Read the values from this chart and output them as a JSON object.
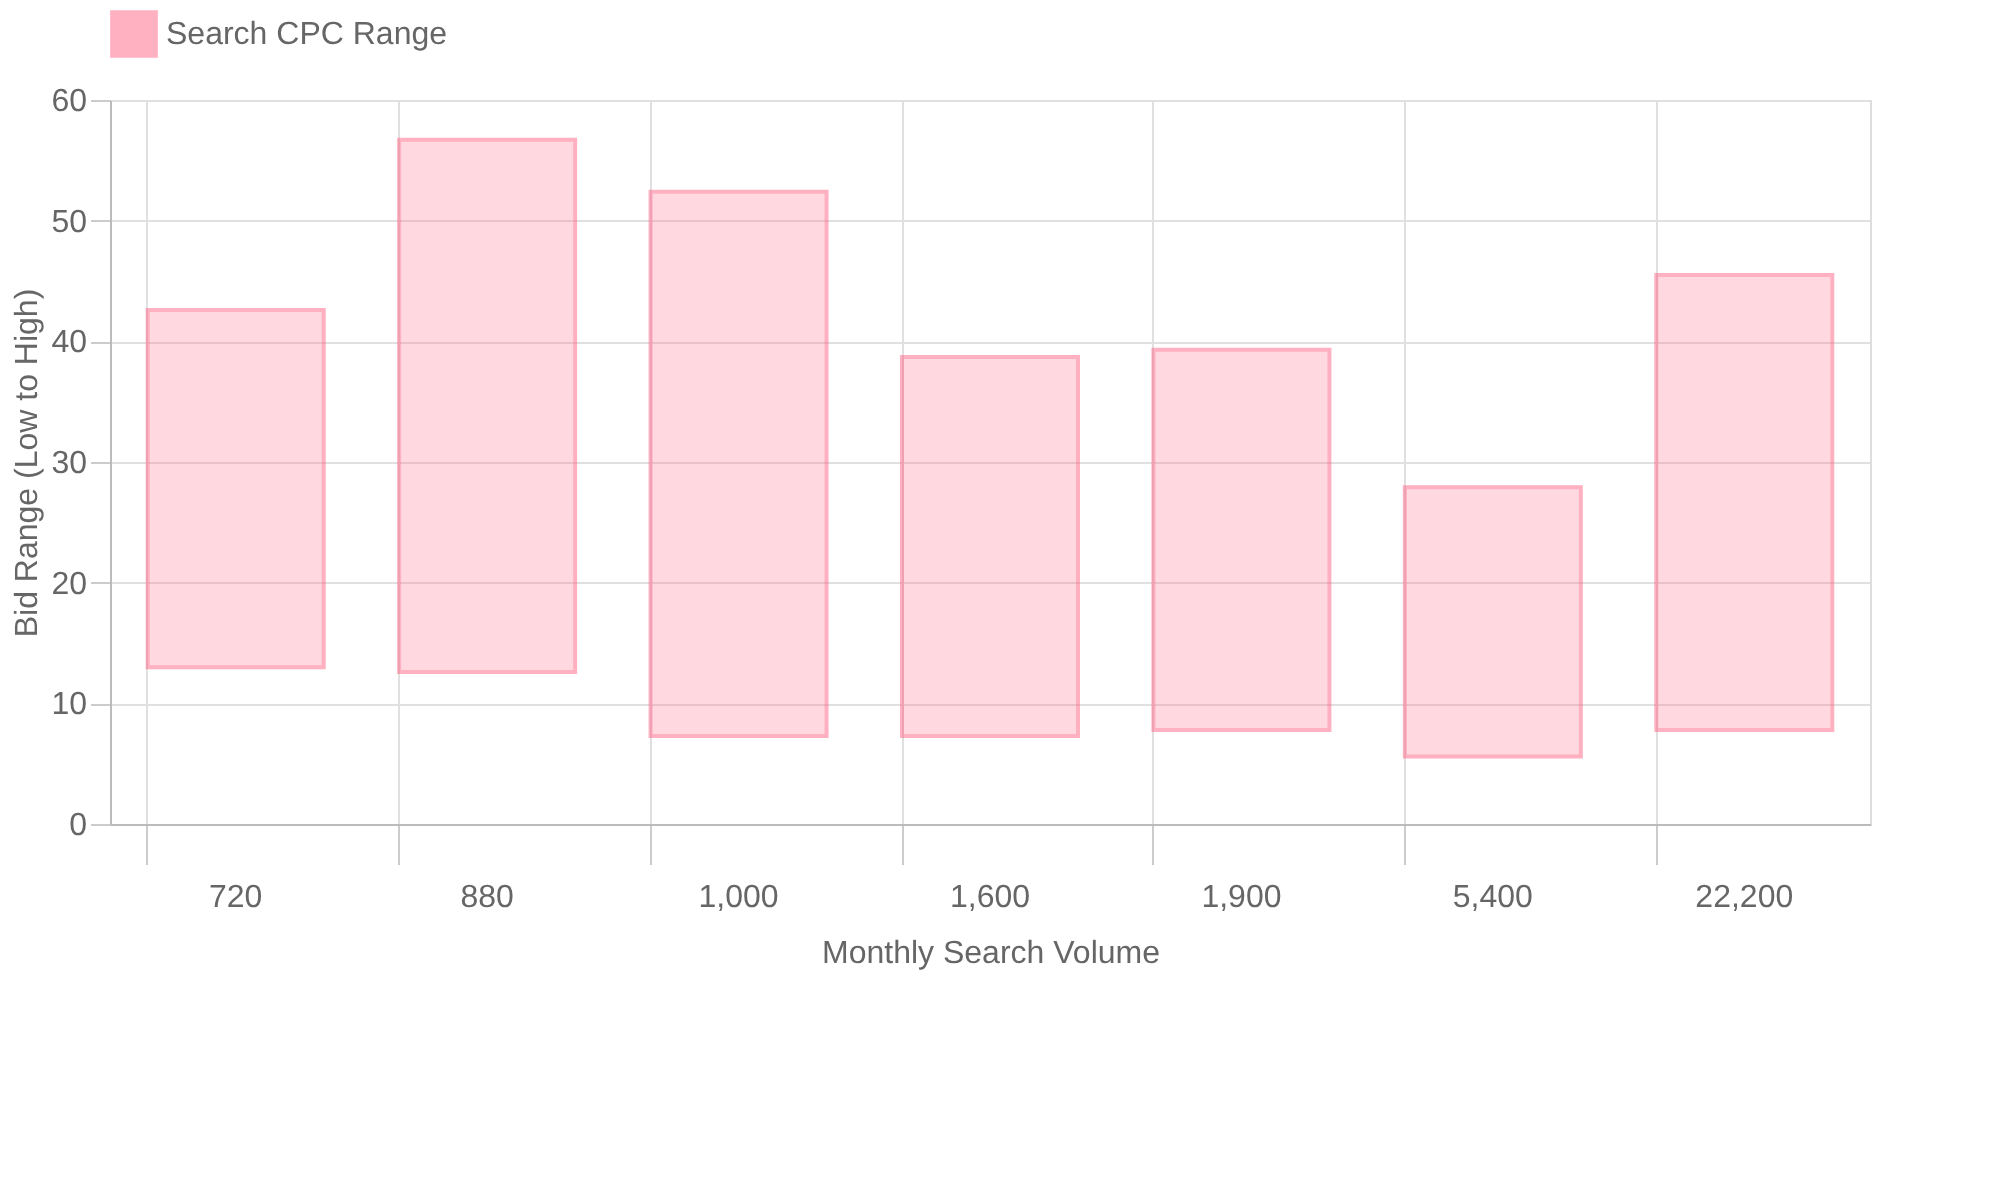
{
  "chart_data": {
    "type": "bar",
    "xlabel": "Monthly Search Volume",
    "ylabel": "Bid Range (Low to High)",
    "categories": [
      "720",
      "880",
      "1,000",
      "1,600",
      "1,900",
      "5,400",
      "22,200"
    ],
    "series": [
      {
        "name": "Search CPC Range",
        "color": "#ff6384",
        "values": [
          29.6,
          44.1,
          45.1,
          31.4,
          31.5,
          22.3,
          37.7
        ],
        "base": [
          13.0,
          12.6,
          7.3,
          7.3,
          7.8,
          5.6,
          7.8
        ]
      }
    ],
    "ylim": [
      0,
      60
    ],
    "yticks": [
      0,
      10,
      20,
      30,
      40,
      50,
      60
    ],
    "grid": true,
    "legend": "top"
  }
}
